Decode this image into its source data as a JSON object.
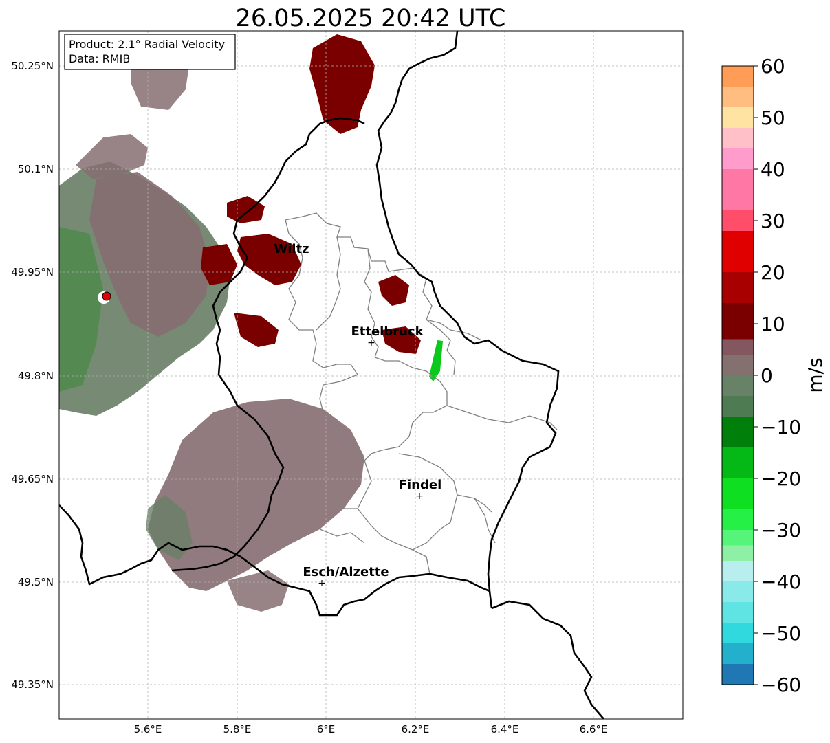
{
  "title": "26.05.2025 20:42 UTC",
  "info_box": {
    "product": "Product: 2.1° Radial Velocity",
    "data": "Data: RMIB"
  },
  "map": {
    "lon_range": [
      5.4,
      6.8
    ],
    "lat_range": [
      49.3,
      50.3
    ],
    "x_ticks": [
      {
        "value": 5.6,
        "label": "5.6°E"
      },
      {
        "value": 5.8,
        "label": "5.8°E"
      },
      {
        "value": 6.0,
        "label": "6°E"
      },
      {
        "value": 6.2,
        "label": "6.2°E"
      },
      {
        "value": 6.4,
        "label": "6.4°E"
      },
      {
        "value": 6.6,
        "label": "6.6°E"
      }
    ],
    "y_ticks": [
      {
        "value": 50.25,
        "label": "50.25°N"
      },
      {
        "value": 50.1,
        "label": "50.1°N"
      },
      {
        "value": 49.95,
        "label": "49.95°N"
      },
      {
        "value": 49.8,
        "label": "49.8°N"
      },
      {
        "value": 49.65,
        "label": "49.65°N"
      },
      {
        "value": 49.5,
        "label": "49.5°N"
      },
      {
        "value": 49.35,
        "label": "49.35°N"
      }
    ],
    "cities": [
      {
        "name": "Wiltz",
        "lon": 5.93,
        "lat": 49.966,
        "marker": false
      },
      {
        "name": "Ettelbruck",
        "lon": 6.104,
        "lat": 49.847,
        "marker": true
      },
      {
        "name": "Findel",
        "lon": 6.21,
        "lat": 49.625,
        "marker": true
      },
      {
        "name": "Esch/Alzette",
        "lon": 5.99,
        "lat": 49.498,
        "marker": true
      }
    ],
    "radar_site": {
      "lon": 5.505,
      "lat": 49.914
    }
  },
  "colorbar": {
    "label": "m/s",
    "min": -60,
    "max": 60,
    "ticks": [
      {
        "value": 60,
        "label": "60"
      },
      {
        "value": 50,
        "label": "50"
      },
      {
        "value": 40,
        "label": "40"
      },
      {
        "value": 30,
        "label": "30"
      },
      {
        "value": 20,
        "label": "20"
      },
      {
        "value": 10,
        "label": "10"
      },
      {
        "value": 0,
        "label": "0"
      },
      {
        "value": -10,
        "label": "−10"
      },
      {
        "value": -20,
        "label": "−20"
      },
      {
        "value": -30,
        "label": "−30"
      },
      {
        "value": -40,
        "label": "−40"
      },
      {
        "value": -50,
        "label": "−50"
      },
      {
        "value": -60,
        "label": "−60"
      }
    ],
    "bands": [
      {
        "from": -60,
        "to": -56,
        "color": "#1f77b4"
      },
      {
        "from": -56,
        "to": -52,
        "color": "#22b0cc"
      },
      {
        "from": -52,
        "to": -48,
        "color": "#2fd9dd"
      },
      {
        "from": -48,
        "to": -44,
        "color": "#5fe3e3"
      },
      {
        "from": -44,
        "to": -40,
        "color": "#8ae9e9"
      },
      {
        "from": -40,
        "to": -36,
        "color": "#b8eeee"
      },
      {
        "from": -36,
        "to": -33,
        "color": "#8ef0a5"
      },
      {
        "from": -33,
        "to": -30,
        "color": "#55f57a"
      },
      {
        "from": -30,
        "to": -26,
        "color": "#25f046"
      },
      {
        "from": -26,
        "to": -20,
        "color": "#0edf20"
      },
      {
        "from": -20,
        "to": -14,
        "color": "#04b915"
      },
      {
        "from": -14,
        "to": -8,
        "color": "#007f0a"
      },
      {
        "from": -8,
        "to": -4,
        "color": "#4e7b51"
      },
      {
        "from": -4,
        "to": 0,
        "color": "#678267"
      },
      {
        "from": 0,
        "to": 4,
        "color": "#857070"
      },
      {
        "from": 4,
        "to": 7,
        "color": "#845660"
      },
      {
        "from": 7,
        "to": 14,
        "color": "#7a0000"
      },
      {
        "from": 14,
        "to": 20,
        "color": "#a80000"
      },
      {
        "from": 20,
        "to": 28,
        "color": "#e00000"
      },
      {
        "from": 28,
        "to": 32,
        "color": "#ff4d6a"
      },
      {
        "from": 32,
        "to": 40,
        "color": "#ff77a5"
      },
      {
        "from": 40,
        "to": 44,
        "color": "#ff9ccc"
      },
      {
        "from": 44,
        "to": 48,
        "color": "#ffc0c8"
      },
      {
        "from": 48,
        "to": 52,
        "color": "#ffe3a3"
      },
      {
        "from": 52,
        "to": 56,
        "color": "#ffbe80"
      },
      {
        "from": 56,
        "to": 60,
        "color": "#ff9c55"
      }
    ]
  },
  "colors": {
    "receding_dark": "#7a0000",
    "neutral_brown": "#866d71",
    "approach_grey": "#5f7f62",
    "approach_green": "#09c91b",
    "border_national": "#000000",
    "border_canton": "#808080"
  }
}
